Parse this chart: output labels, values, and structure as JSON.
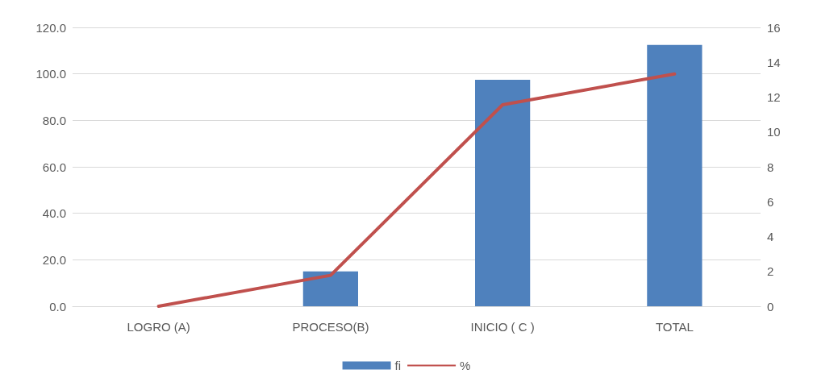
{
  "chart_data": {
    "type": "bar",
    "categories": [
      "LOGRO (A)",
      "PROCESO(B)",
      "INICIO ( C )",
      "TOTAL"
    ],
    "series": [
      {
        "name": "fi",
        "axis": "y2",
        "color": "#4f81bd",
        "values": [
          0,
          2,
          13,
          15
        ]
      },
      {
        "name": "%",
        "type": "line",
        "color": "#c0504d",
        "values": [
          0,
          13.3,
          86.7,
          100
        ]
      }
    ],
    "ylim": [
      0,
      120
    ],
    "yticks": [
      {
        "value": 0,
        "label": "0.0"
      },
      {
        "value": 20,
        "label": "20.0"
      },
      {
        "value": 40,
        "label": "40.0"
      },
      {
        "value": 60,
        "label": "60.0"
      },
      {
        "value": 80,
        "label": "80.0"
      },
      {
        "value": 100,
        "label": "100.0"
      },
      {
        "value": 120,
        "label": "120.0"
      }
    ],
    "y2lim": [
      0,
      16
    ],
    "y2ticks": [
      0,
      2,
      4,
      6,
      8,
      10,
      12,
      14,
      16
    ],
    "grid": "y",
    "legend": "bottom",
    "marker": "none",
    "line_style": "solid"
  }
}
